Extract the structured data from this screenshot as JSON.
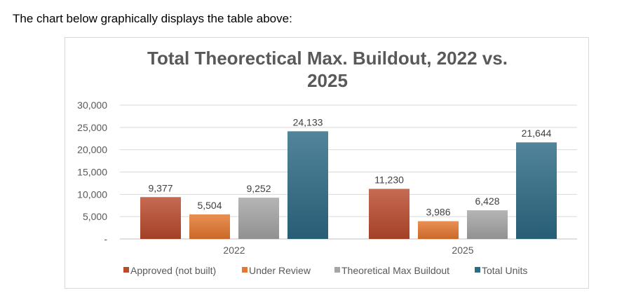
{
  "intro_text": "The chart below graphically displays the table above:",
  "chart_data": {
    "type": "bar",
    "title_lines": [
      "Total Theorectical Max. Buildout, 2022 vs.",
      "2025"
    ],
    "categories": [
      "2022",
      "2025"
    ],
    "series": [
      {
        "name": "Approved (not built)",
        "values": [
          9377,
          11230
        ],
        "labels": [
          "9,377",
          "11,230"
        ],
        "color": "#b94a2c"
      },
      {
        "name": "Under Review",
        "values": [
          5504,
          3986
        ],
        "labels": [
          "5,504",
          "3,986"
        ],
        "color": "#e5772f"
      },
      {
        "name": "Theoretical Max Buildout",
        "values": [
          9252,
          6428
        ],
        "labels": [
          "9,252",
          "6,428"
        ],
        "color": "#a5a5a5"
      },
      {
        "name": "Total Units",
        "values": [
          24133,
          21644
        ],
        "labels": [
          "24,133",
          "21,644"
        ],
        "color": "#2c6a85"
      }
    ],
    "ylim": [
      0,
      30000
    ],
    "yticks": [
      0,
      5000,
      10000,
      15000,
      20000,
      25000,
      30000
    ],
    "ytick_labels": [
      "-",
      "5,000",
      "10,000",
      "15,000",
      "20,000",
      "25,000",
      "30,000"
    ],
    "grid": true,
    "legend_position": "bottom"
  }
}
